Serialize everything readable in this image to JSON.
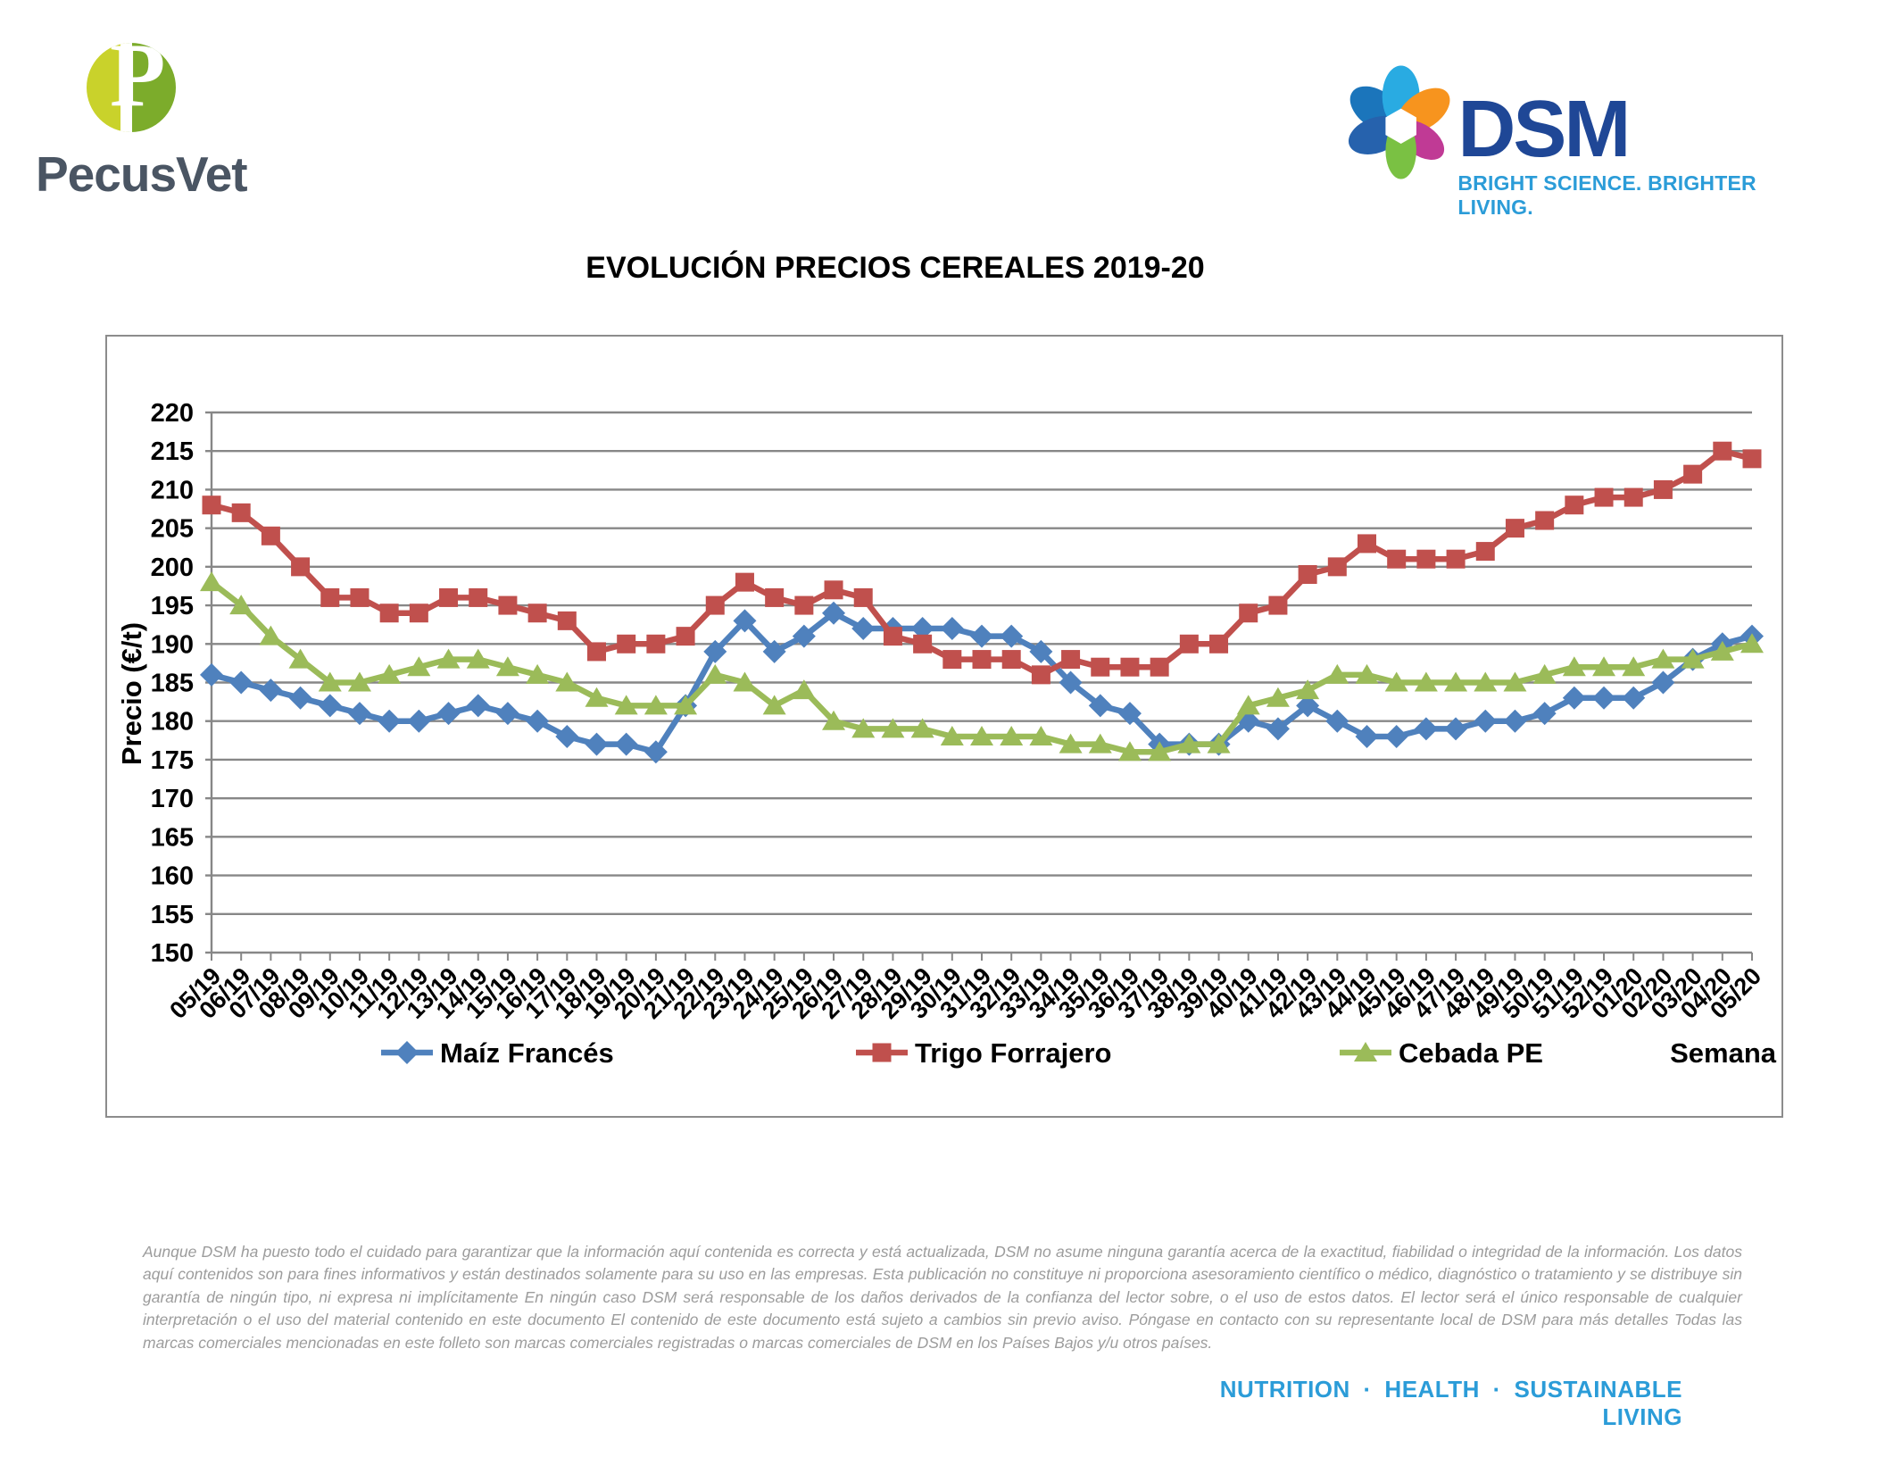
{
  "header": {
    "pecusvet": {
      "name": "PecusVet",
      "monogram": "P",
      "text_color": "#4a5563",
      "circle_left_color": "#c9d22b",
      "circle_right_color": "#7cac2b"
    },
    "dsm": {
      "name": "DSM",
      "tagline": "BRIGHT SCIENCE. BRIGHTER LIVING.",
      "text_color": "#1f4796",
      "tagline_color": "#2b9cd8"
    }
  },
  "chart_data": {
    "type": "line",
    "title": "EVOLUCIÓN PRECIOS CEREALES 2019-20",
    "xlabel": "Semana",
    "ylabel": "Precio (€/t)",
    "ylim": [
      150,
      220
    ],
    "ytick_step": 5,
    "grid": true,
    "legend_position": "bottom",
    "gridline_color": "#878787",
    "categories": [
      "05/19",
      "06/19",
      "07/19",
      "08/19",
      "09/19",
      "10/19",
      "11/19",
      "12/19",
      "13/19",
      "14/19",
      "15/19",
      "16/19",
      "17/19",
      "18/19",
      "19/19",
      "20/19",
      "21/19",
      "22/19",
      "23/19",
      "24/19",
      "25/19",
      "26/19",
      "27/19",
      "28/19",
      "29/19",
      "30/19",
      "31/19",
      "32/19",
      "33/19",
      "34/19",
      "35/19",
      "36/19",
      "37/19",
      "38/19",
      "39/19",
      "40/19",
      "41/19",
      "42/19",
      "43/19",
      "44/19",
      "45/19",
      "46/19",
      "47/19",
      "48/19",
      "49/19",
      "50/19",
      "51/19",
      "52/19",
      "01/20",
      "02/20",
      "03/20",
      "04/20",
      "05/20"
    ],
    "series": [
      {
        "name": "Maíz Francés",
        "color": "#4f81bd",
        "marker": "diamond",
        "values": [
          186,
          185,
          184,
          183,
          182,
          181,
          180,
          180,
          181,
          182,
          181,
          180,
          178,
          177,
          177,
          176,
          182,
          189,
          193,
          189,
          191,
          194,
          192,
          192,
          192,
          192,
          191,
          191,
          189,
          185,
          182,
          181,
          177,
          177,
          177,
          180,
          179,
          182,
          180,
          178,
          178,
          179,
          179,
          180,
          180,
          181,
          183,
          183,
          183,
          185,
          188,
          190,
          191
        ]
      },
      {
        "name": "Trigo Forrajero",
        "color": "#c0504d",
        "marker": "square",
        "values": [
          208,
          207,
          204,
          200,
          196,
          196,
          194,
          194,
          196,
          196,
          195,
          194,
          193,
          189,
          190,
          190,
          191,
          195,
          198,
          196,
          195,
          197,
          196,
          191,
          190,
          188,
          188,
          188,
          186,
          188,
          187,
          187,
          187,
          190,
          190,
          194,
          195,
          199,
          200,
          203,
          201,
          201,
          201,
          202,
          205,
          206,
          208,
          209,
          209,
          210,
          212,
          215,
          214
        ]
      },
      {
        "name": "Cebada PE",
        "color": "#9bbb59",
        "marker": "triangle",
        "values": [
          198,
          195,
          191,
          188,
          185,
          185,
          186,
          187,
          188,
          188,
          187,
          186,
          185,
          183,
          182,
          182,
          182,
          186,
          185,
          182,
          184,
          180,
          179,
          179,
          179,
          178,
          178,
          178,
          178,
          177,
          177,
          176,
          176,
          177,
          177,
          182,
          183,
          184,
          186,
          186,
          185,
          185,
          185,
          185,
          185,
          186,
          187,
          187,
          187,
          188,
          188,
          189,
          190
        ]
      }
    ]
  },
  "footer": {
    "disclaimer": "Aunque DSM ha puesto todo el cuidado para garantizar que la información aquí contenida es correcta y está actualizada, DSM no asume ninguna garantía acerca de la exactitud, fiabilidad o integridad de la información. Los datos aquí contenidos son para fines informativos y están destinados solamente para su uso en las empresas. Esta publicación no constituye ni proporciona asesoramiento científico o médico, diagnóstico o tratamiento y se distribuye sin garantía de ningún tipo, ni expresa ni implícitamente En ningún caso DSM será responsable de los daños derivados de la confianza del lector sobre, o el uso de estos datos. El lector será el único responsable de cualquier interpretación o el uso del material contenido en este documento El contenido de este documento está sujeto a cambios sin previo aviso. Póngase en contacto con su representante local de DSM para más detalles Todas las marcas comerciales mencionadas en este folleto son marcas comerciales registradas o marcas comerciales de DSM en los Países Bajos y/u otros países.",
    "tagline": "NUTRITION · HEALTH · SUSTAINABLE LIVING",
    "tagline_color": "#2b9cd8"
  }
}
